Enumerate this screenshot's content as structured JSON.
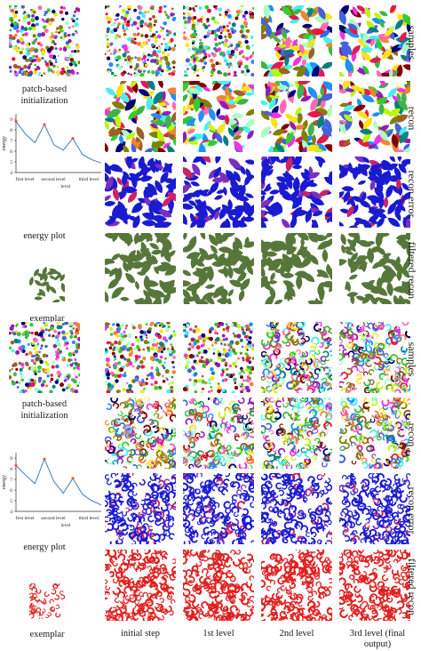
{
  "figure": {
    "column_labels": [
      "initial step",
      "1st level",
      "2nd level",
      "3rd level (final output)"
    ],
    "row_labels": [
      "samples",
      "recon",
      "recon error",
      "filtered recon"
    ],
    "side_labels": {
      "init": "patch-based initialization",
      "energy": "energy plot",
      "exemplar": "exemplar"
    },
    "examples": [
      {
        "name": "leaves",
        "exemplar_color": "#56773a",
        "error_color": "#1a1ad0",
        "motif": "leaf"
      },
      {
        "name": "swirls",
        "exemplar_color": "#e02020",
        "error_color": "#1a1ad0",
        "motif": "swirl"
      }
    ]
  },
  "chart_data": [
    {
      "type": "line",
      "title": "",
      "xlabel": "level",
      "ylabel": "energy",
      "ylim": [
        4,
        9.5
      ],
      "yticks": [
        "4",
        "5",
        "6",
        "7",
        "8",
        "9"
      ],
      "level_labels": [
        "first level",
        "second level",
        "third level"
      ],
      "series": [
        {
          "x": [
            0,
            1,
            2,
            3,
            4,
            5,
            6,
            7,
            8,
            9
          ],
          "values": [
            8.8,
            7.6,
            6.8,
            8.5,
            6.6,
            6.1,
            7.2,
            5.7,
            5.2,
            4.9
          ]
        }
      ],
      "highlight_indices": [
        0,
        3,
        6
      ]
    },
    {
      "type": "line",
      "title": "",
      "xlabel": "level",
      "ylabel": "energy",
      "ylim": [
        4,
        9.5
      ],
      "yticks": [
        "4",
        "5",
        "6",
        "7",
        "8",
        "9"
      ],
      "level_labels": [
        "first level",
        "second level",
        "third level"
      ],
      "series": [
        {
          "x": [
            0,
            1,
            2,
            3,
            4,
            5,
            6,
            7,
            8,
            9
          ],
          "values": [
            8.3,
            7.4,
            6.6,
            8.9,
            6.8,
            5.7,
            7.1,
            5.6,
            5.0,
            4.6
          ]
        }
      ],
      "highlight_indices": [
        0,
        3,
        6
      ]
    }
  ]
}
